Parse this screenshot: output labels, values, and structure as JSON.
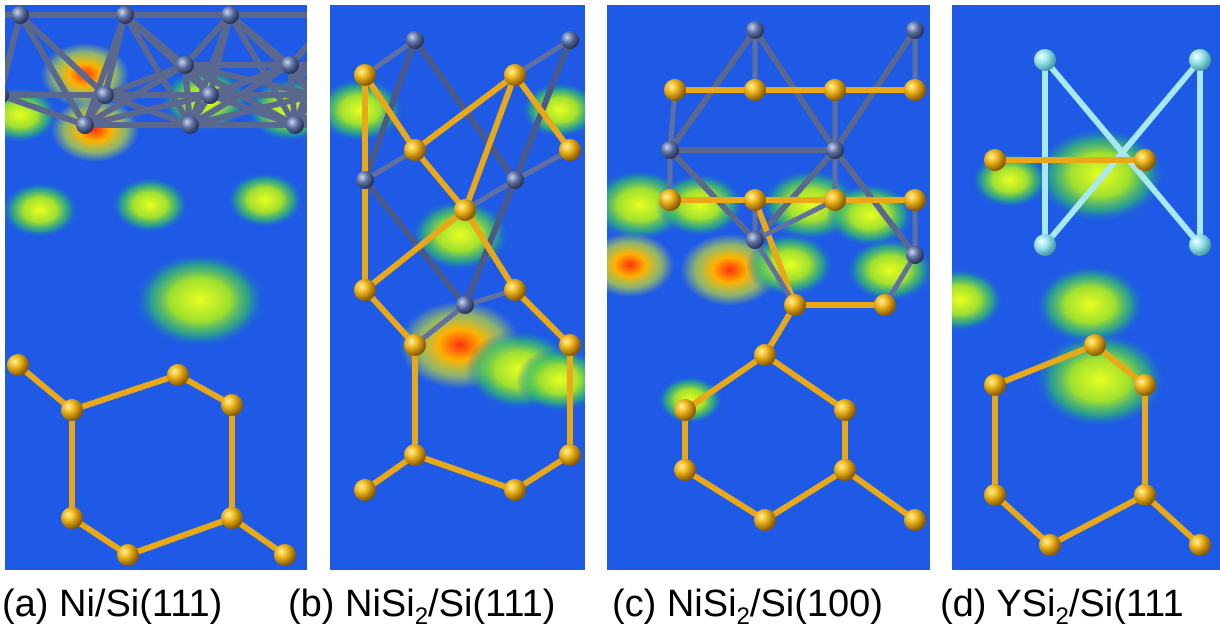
{
  "panels": [
    {
      "caption": {
        "prefix": "(a) Ni/Si(111)"
      }
    },
    {
      "caption": {
        "prefix": "(b) NiSi",
        "sub": "2",
        "suffix": "/Si(111)"
      }
    },
    {
      "caption": {
        "prefix": "(c) NiSi",
        "sub": "2",
        "suffix": "/Si(100)"
      }
    },
    {
      "caption": {
        "prefix": "(d) YSi",
        "sub": "2",
        "suffix": "/Si(111"
      }
    }
  ]
}
